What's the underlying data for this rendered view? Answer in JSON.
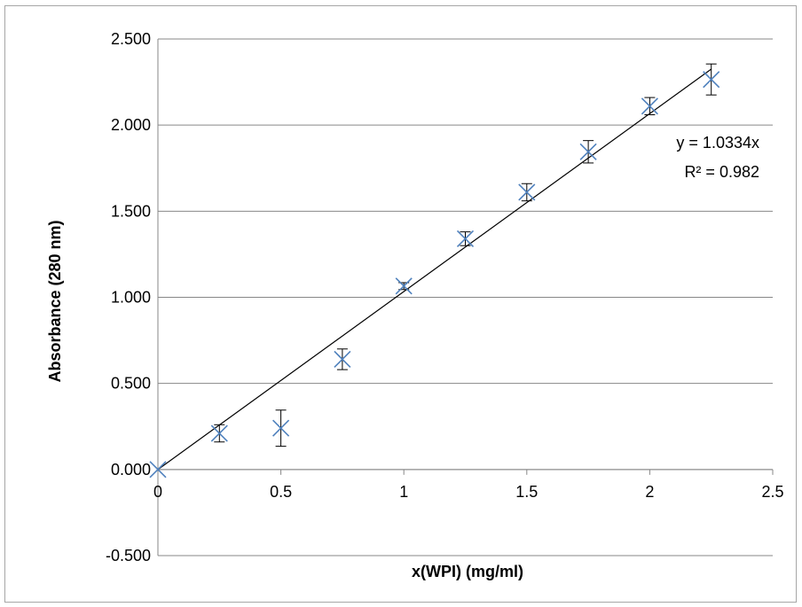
{
  "chart_data": {
    "type": "scatter",
    "title": "",
    "xlabel": "x(WPI) (mg/ml)",
    "ylabel": "Absorbance (280 nm)",
    "xlim": [
      0,
      2.5
    ],
    "ylim": [
      -0.5,
      2.5
    ],
    "x_ticks": [
      "0",
      "0.5",
      "1",
      "1.5",
      "2",
      "2.5"
    ],
    "y_ticks": [
      "-0.500",
      "0.000",
      "0.500",
      "1.000",
      "1.500",
      "2.000",
      "2.500"
    ],
    "grid": "horizontal",
    "legend": "none",
    "marker": "x",
    "marker_color": "#4f81bd",
    "series": [
      {
        "x": [
          0,
          0.25,
          0.5,
          0.75,
          1.0,
          1.25,
          1.5,
          1.75,
          2.0,
          2.25
        ],
        "y": [
          0.0,
          0.21,
          0.24,
          0.64,
          1.065,
          1.34,
          1.61,
          1.845,
          2.11,
          2.265
        ],
        "error": [
          0.0,
          0.05,
          0.105,
          0.06,
          0.02,
          0.04,
          0.05,
          0.065,
          0.05,
          0.09
        ]
      }
    ],
    "trendline": {
      "type": "linear-through-origin",
      "slope": 1.0334,
      "color": "#000000",
      "equation": "y = 1.0334x",
      "r_squared": "R² = 0.982"
    }
  }
}
